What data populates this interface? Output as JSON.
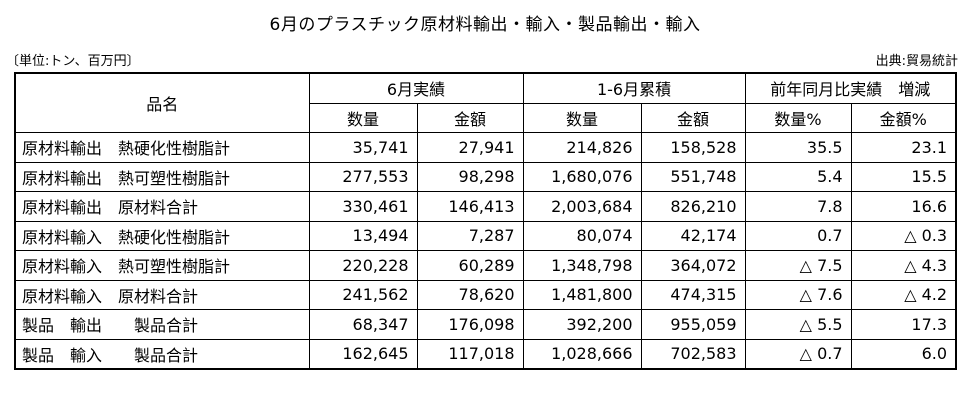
{
  "title": "6月のプラスチック原材料輸出・輸入・製品輸出・輸入",
  "unit_label": "〔単位:トン、百万円〕",
  "source_label": "出典:貿易統計",
  "headers": {
    "item_name": "品名",
    "group_june": "6月実績",
    "group_cumulative": "1-6月累積",
    "group_yoy": "前年同月比実績　増減",
    "quantity": "数量",
    "amount": "金額",
    "quantity_pct": "数量%",
    "amount_pct": "金額%"
  },
  "rows": [
    {
      "name": "原材料輸出　熱硬化性樹脂計",
      "june_qty": "35,741",
      "june_amt": "27,941",
      "cum_qty": "214,826",
      "cum_amt": "158,528",
      "yoy_qty": "35.5",
      "yoy_amt": "23.1"
    },
    {
      "name": "原材料輸出　熱可塑性樹脂計",
      "june_qty": "277,553",
      "june_amt": "98,298",
      "cum_qty": "1,680,076",
      "cum_amt": "551,748",
      "yoy_qty": "5.4",
      "yoy_amt": "15.5"
    },
    {
      "name": "原材料輸出　原材料合計",
      "june_qty": "330,461",
      "june_amt": "146,413",
      "cum_qty": "2,003,684",
      "cum_amt": "826,210",
      "yoy_qty": "7.8",
      "yoy_amt": "16.6"
    },
    {
      "name": "原材料輸入　熱硬化性樹脂計",
      "june_qty": "13,494",
      "june_amt": "7,287",
      "cum_qty": "80,074",
      "cum_amt": "42,174",
      "yoy_qty": "0.7",
      "yoy_amt": "△ 0.3"
    },
    {
      "name": "原材料輸入　熱可塑性樹脂計",
      "june_qty": "220,228",
      "june_amt": "60,289",
      "cum_qty": "1,348,798",
      "cum_amt": "364,072",
      "yoy_qty": "△ 7.5",
      "yoy_amt": "△ 4.3"
    },
    {
      "name": "原材料輸入　原材料合計",
      "june_qty": "241,562",
      "june_amt": "78,620",
      "cum_qty": "1,481,800",
      "cum_amt": "474,315",
      "yoy_qty": "△ 7.6",
      "yoy_amt": "△ 4.2"
    },
    {
      "name": "製品　輸出　　製品合計",
      "june_qty": "68,347",
      "june_amt": "176,098",
      "cum_qty": "392,200",
      "cum_amt": "955,059",
      "yoy_qty": "△ 5.5",
      "yoy_amt": "17.3"
    },
    {
      "name": "製品　輸入　　製品合計",
      "june_qty": "162,645",
      "june_amt": "117,018",
      "cum_qty": "1,028,666",
      "cum_amt": "702,583",
      "yoy_qty": "△ 0.7",
      "yoy_amt": "6.0"
    }
  ]
}
